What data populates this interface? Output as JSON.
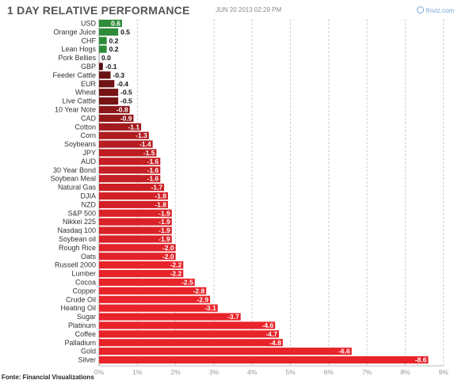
{
  "header": {
    "title": "1 DAY RELATIVE PERFORMANCE",
    "date": "JUN 20 2013 02:29 PM",
    "brand": "finviz.com"
  },
  "footer": {
    "source": "Fonte: Financial Visualizations"
  },
  "colors": {
    "positive": "#2e8b3a",
    "zero": "#333333",
    "negative_light": "#e8232a",
    "negative_dark": "#5a1010"
  },
  "chart_data": {
    "type": "bar",
    "orientation": "horizontal",
    "categories": [
      "USD",
      "Orange Juice",
      "CHF",
      "Lean Hogs",
      "Pork Bellies",
      "GBP",
      "Feeder Cattle",
      "EUR",
      "Wheat",
      "Live Cattle",
      "10 Year Note",
      "CAD",
      "Cotton",
      "Corn",
      "Soybeans",
      "JPY",
      "AUD",
      "30 Year Bond",
      "Soybean Meal",
      "Natural Gas",
      "DJIA",
      "NZD",
      "S&P 500",
      "Nikkei 225",
      "Nasdaq 100",
      "Soybean oil",
      "Rough Rice",
      "Oats",
      "Russell 2000",
      "Lumber",
      "Cocoa",
      "Copper",
      "Crude Oil",
      "Heating Oil",
      "Sugar",
      "Platinum",
      "Coffee",
      "Palladium",
      "Gold",
      "Silver"
    ],
    "values": [
      0.6,
      0.5,
      0.2,
      0.2,
      0.0,
      -0.1,
      -0.3,
      -0.4,
      -0.5,
      -0.5,
      -0.8,
      -0.9,
      -1.1,
      -1.3,
      -1.4,
      -1.5,
      -1.6,
      -1.6,
      -1.6,
      -1.7,
      -1.8,
      -1.8,
      -1.9,
      -1.9,
      -1.9,
      -1.9,
      -2.0,
      -2.0,
      -2.2,
      -2.2,
      -2.5,
      -2.8,
      -2.9,
      -3.1,
      -3.7,
      -4.6,
      -4.7,
      -4.8,
      -6.6,
      -8.6
    ],
    "value_labels": [
      "0.6",
      "0.5",
      "0.2",
      "0.2",
      "0.0",
      "-0.1",
      "-0.3",
      "-0.4",
      "-0.5",
      "-0.5",
      "-0.8",
      "-0.9",
      "-1.1",
      "-1.3",
      "-1.4",
      "-1.5",
      "-1.6",
      "-1.6",
      "-1.6",
      "-1.7",
      "-1.8",
      "-1.8",
      "-1.9",
      "-1.9",
      "-1.9",
      "-1.9",
      "-2.0",
      "-2.0",
      "-2.2",
      "-2.2",
      "-2.5",
      "-2.8",
      "-2.9",
      "-3.1",
      "-3.7",
      "-4.6",
      "-4.7",
      "-4.8",
      "-6.6",
      "-8.6"
    ],
    "x_ticks": [
      "0%",
      "1%",
      "2%",
      "3%",
      "4%",
      "5%",
      "6%",
      "7%",
      "8%",
      "9%"
    ],
    "xlim": [
      0,
      9
    ],
    "magnitude_scale": true,
    "grid": true
  }
}
